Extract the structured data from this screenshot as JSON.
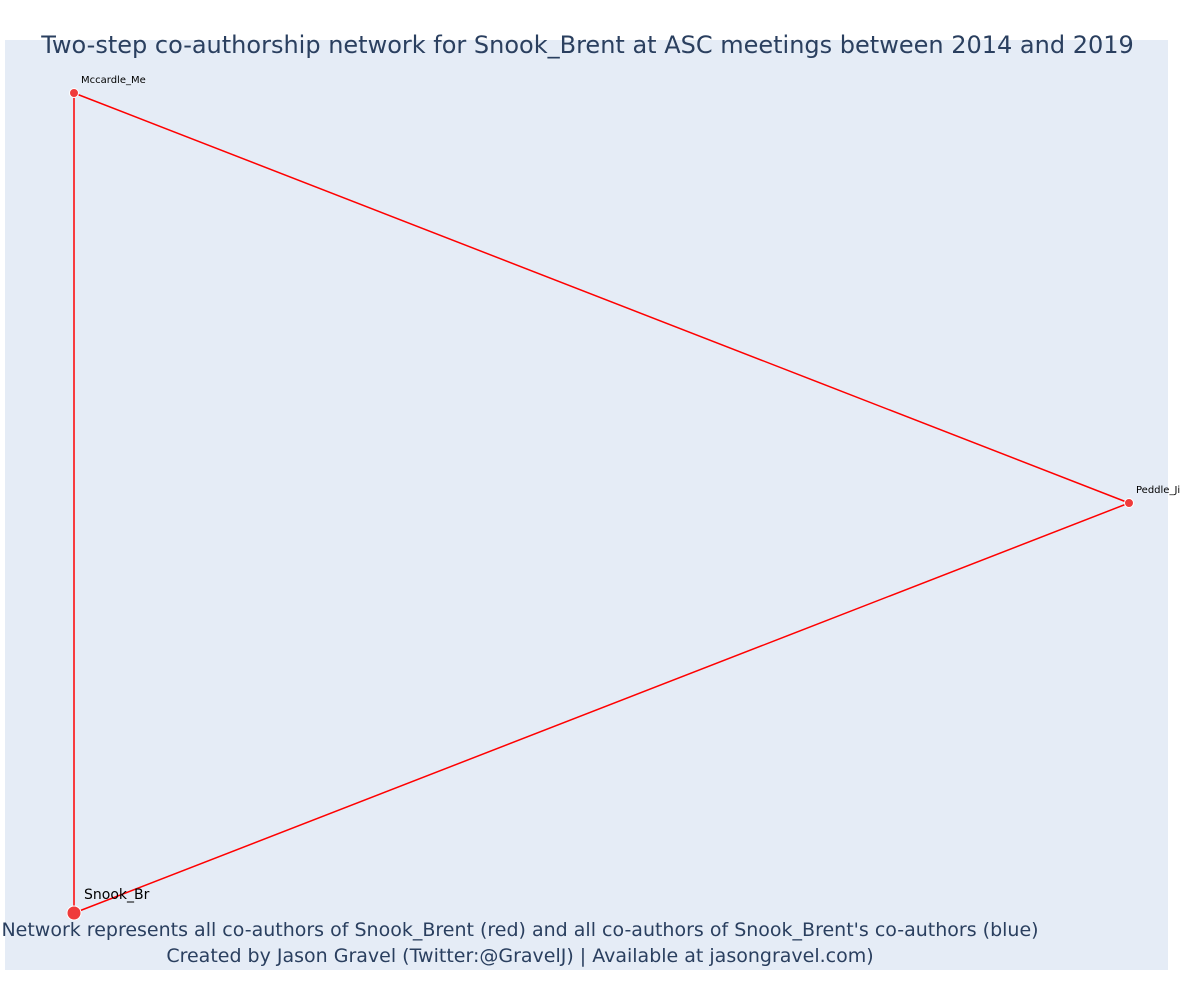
{
  "chart_data": {
    "type": "network",
    "title": "Two-step co-authorship network for Snook_Brent at ASC meetings between 2014 and 2019",
    "nodes": [
      {
        "id": "Mccardle_Me",
        "label": "Mccardle_Me",
        "group": "co-author",
        "color": "#ef3b3b",
        "size": "small"
      },
      {
        "id": "Peddle_Ji",
        "label": "Peddle_Ji",
        "group": "co-author",
        "color": "#ef3b3b",
        "size": "small"
      },
      {
        "id": "Snook_Br",
        "label": "Snook_Br",
        "group": "focal",
        "color": "#ef3b3b",
        "size": "large"
      }
    ],
    "edges": [
      {
        "source": "Mccardle_Me",
        "target": "Peddle_Ji",
        "color": "#ff0000"
      },
      {
        "source": "Mccardle_Me",
        "target": "Snook_Br",
        "color": "#ff0000"
      },
      {
        "source": "Peddle_Ji",
        "target": "Snook_Br",
        "color": "#ff0000"
      }
    ],
    "annotations": [
      "Network represents all co-authors of Snook_Brent (red) and all co-authors of Snook_Brent's co-authors (blue)",
      "Created by Jason Gravel (Twitter:@GravelJ) | Available at jasongravel.com)"
    ],
    "background_color": "#e5ecf6",
    "title_color": "#2a3f5f"
  }
}
